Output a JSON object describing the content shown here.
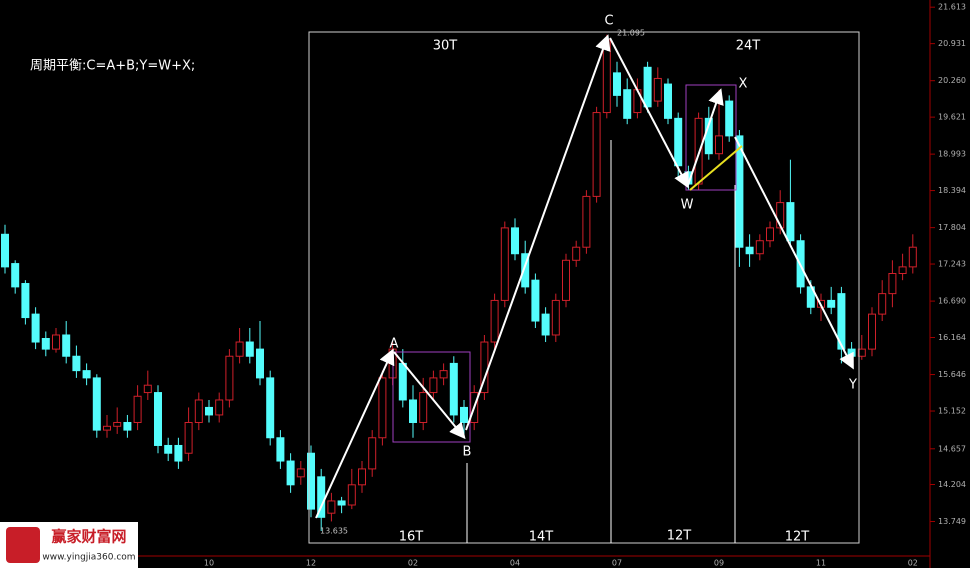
{
  "chart_data": {
    "type": "candlestick",
    "annotation": "周期平衡:C=A+B;Y=W+X;",
    "cycle_labels": [
      "30T",
      "24T",
      "16T",
      "14T",
      "12T",
      "12T"
    ],
    "wave_labels": [
      "A",
      "B",
      "C",
      "W",
      "X",
      "Y"
    ],
    "up_color": "#d0202a",
    "down_color": "#54fcfc",
    "log_scale": true,
    "ylim": [
      13.35,
      21.75
    ],
    "yticks": [
      21.613,
      20.931,
      {
        "value": 20.26,
        "label": "20.260"
      },
      19.621,
      18.993,
      18.394,
      17.804,
      17.243,
      {
        "value": 16.69,
        "label": "16.690"
      },
      16.164,
      15.646,
      15.152,
      14.657,
      14.204,
      13.749
    ],
    "categories": [
      null,
      null,
      null,
      null,
      null,
      null,
      null,
      null,
      null,
      null,
      null,
      null,
      null,
      null,
      null,
      null,
      null,
      null,
      null,
      null,
      "10",
      null,
      null,
      null,
      null,
      null,
      null,
      null,
      null,
      null,
      "12",
      null,
      null,
      null,
      null,
      null,
      null,
      null,
      null,
      null,
      "02",
      null,
      null,
      null,
      null,
      null,
      null,
      null,
      null,
      null,
      "04",
      null,
      null,
      null,
      null,
      null,
      null,
      null,
      null,
      null,
      "07",
      null,
      null,
      null,
      null,
      null,
      null,
      null,
      null,
      null,
      "09",
      null,
      null,
      null,
      null,
      null,
      null,
      null,
      null,
      null,
      "11",
      null,
      null,
      null,
      null,
      null,
      null,
      null,
      null,
      "02"
    ],
    "open": [
      17.7,
      17.25,
      16.95,
      16.5,
      16.15,
      16.0,
      16.2,
      15.9,
      15.7,
      15.6,
      14.9,
      14.95,
      15.0,
      15.0,
      15.4,
      15.4,
      14.7,
      14.7,
      14.6,
      15.0,
      15.2,
      15.1,
      15.3,
      15.9,
      16.1,
      16.0,
      15.6,
      14.8,
      14.5,
      14.3,
      14.6,
      14.3,
      13.85,
      14.0,
      13.95,
      14.2,
      14.4,
      14.8,
      15.6,
      15.8,
      15.3,
      15.0,
      15.4,
      15.6,
      15.8,
      15.2,
      15.0,
      15.4,
      16.1,
      16.7,
      17.8,
      17.4,
      17.0,
      16.5,
      16.2,
      16.7,
      17.3,
      17.5,
      18.3,
      19.7,
      20.4,
      20.1,
      19.7,
      20.5,
      19.9,
      20.2,
      19.6,
      18.7,
      18.5,
      19.6,
      19.0,
      19.9,
      19.3,
      17.5,
      17.4,
      17.6,
      17.8,
      18.2,
      17.6,
      16.9,
      16.6,
      16.7,
      16.8,
      16.0,
      15.9,
      16.0,
      16.5,
      16.8,
      17.1,
      17.2
    ],
    "high": [
      17.85,
      17.3,
      17.0,
      16.6,
      16.25,
      16.3,
      16.4,
      16.05,
      15.8,
      15.65,
      15.1,
      15.2,
      15.1,
      15.5,
      15.7,
      15.5,
      14.8,
      14.8,
      15.2,
      15.4,
      15.3,
      15.4,
      16.0,
      16.3,
      16.3,
      16.4,
      15.7,
      14.9,
      14.6,
      14.5,
      14.7,
      14.4,
      14.1,
      14.05,
      14.4,
      14.5,
      14.9,
      15.7,
      16.1,
      16.0,
      15.5,
      15.6,
      15.7,
      15.8,
      15.9,
      15.3,
      15.5,
      16.2,
      16.8,
      17.9,
      17.95,
      17.6,
      17.1,
      16.6,
      16.8,
      17.4,
      17.6,
      18.4,
      19.8,
      21.095,
      20.6,
      20.3,
      20.3,
      20.6,
      20.5,
      20.3,
      19.7,
      18.8,
      19.7,
      19.8,
      20.1,
      20.0,
      19.4,
      17.7,
      17.7,
      17.9,
      18.4,
      18.9,
      17.7,
      17.0,
      16.8,
      16.9,
      16.9,
      16.1,
      16.2,
      16.6,
      17.0,
      17.3,
      17.4,
      17.7
    ],
    "low": [
      17.1,
      16.8,
      16.35,
      16.0,
      15.9,
      15.95,
      15.8,
      15.6,
      15.5,
      14.8,
      14.8,
      14.85,
      14.8,
      14.9,
      15.3,
      14.6,
      14.5,
      14.4,
      14.5,
      14.9,
      15.0,
      15.0,
      15.2,
      15.8,
      15.8,
      15.5,
      14.7,
      14.4,
      14.1,
      14.2,
      13.8,
      13.635,
      13.75,
      13.85,
      13.9,
      14.1,
      14.3,
      14.7,
      15.5,
      15.2,
      14.8,
      14.9,
      15.3,
      15.5,
      15.0,
      14.85,
      14.9,
      15.3,
      16.0,
      16.6,
      17.3,
      16.8,
      16.3,
      16.1,
      16.1,
      16.6,
      17.2,
      17.4,
      18.2,
      19.6,
      19.8,
      19.5,
      19.6,
      19.7,
      19.8,
      19.5,
      18.6,
      18.4,
      18.4,
      18.9,
      18.9,
      19.2,
      17.2,
      17.2,
      17.3,
      17.5,
      17.7,
      17.5,
      16.8,
      16.5,
      16.4,
      16.5,
      15.8,
      15.75,
      15.85,
      15.9,
      16.4,
      16.6,
      17.0,
      17.1
    ],
    "close": [
      17.2,
      16.9,
      16.45,
      16.1,
      16.0,
      16.2,
      15.9,
      15.7,
      15.6,
      14.9,
      14.95,
      15.0,
      14.9,
      15.35,
      15.5,
      14.7,
      14.6,
      14.5,
      15.0,
      15.3,
      15.1,
      15.3,
      15.9,
      16.1,
      15.9,
      15.6,
      14.8,
      14.5,
      14.2,
      14.4,
      13.9,
      13.8,
      14.0,
      13.95,
      14.2,
      14.4,
      14.8,
      15.6,
      16.0,
      15.3,
      15.0,
      15.4,
      15.6,
      15.7,
      15.1,
      15.0,
      15.4,
      16.1,
      16.7,
      17.8,
      17.4,
      16.9,
      16.4,
      16.2,
      16.7,
      17.3,
      17.5,
      18.3,
      19.7,
      21.0,
      20.0,
      19.6,
      20.1,
      19.8,
      20.3,
      19.6,
      18.8,
      18.5,
      19.6,
      19.0,
      19.3,
      19.3,
      17.5,
      17.4,
      17.6,
      17.8,
      18.2,
      17.6,
      16.9,
      16.6,
      16.7,
      16.6,
      16.0,
      15.9,
      16.0,
      16.5,
      16.8,
      17.1,
      17.2,
      17.5
    ]
  },
  "logo": {
    "name": "赢家财富网",
    "url": "www.yingjia360.com"
  }
}
